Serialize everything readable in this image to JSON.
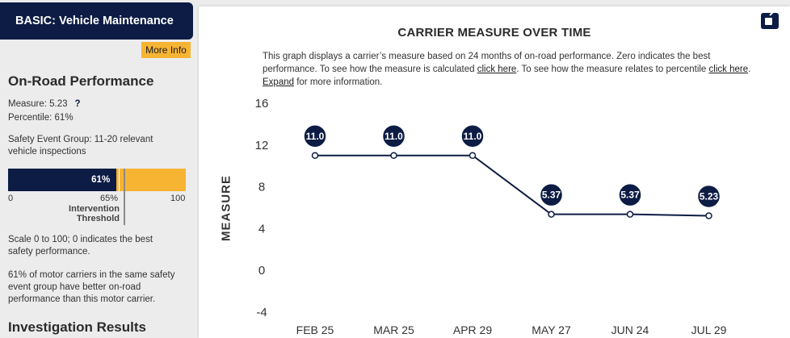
{
  "left_panel": {
    "basic_title": "BASIC: Vehicle Maintenance",
    "more_info_label": "More Info",
    "onroad_title": "On-Road Performance",
    "measure_text": "Measure: 5.23",
    "help_symbol": "?",
    "percentile_text": "Percentile: 61%",
    "safety_group_line1": "Safety Event Group: 11-20 relevant",
    "safety_group_line2": "vehicle inspections",
    "bar": {
      "percentile": 61,
      "fill_label": "61%",
      "min_label": "0",
      "threshold_label": "65%",
      "max_label": "100",
      "threshold_value": 65,
      "threshold_caption_line1": "Intervention",
      "threshold_caption_line2": "Threshold"
    },
    "scale_line1": "Scale 0 to 100; 0 indicates the best",
    "scale_line2": "safety performance.",
    "pct_note_line1": "61% of motor carriers in the same safety",
    "pct_note_line2": "event group have better on-road",
    "pct_note_line3": "performance than this motor carrier.",
    "investigation_title": "Investigation Results"
  },
  "chart_panel": {
    "title": "CARRIER MEASURE OVER TIME",
    "desc_part1": "This graph displays a carrier’s measure based on 24 months of on-road performance. Zero indicates the best performance. To see how the measure is calculated ",
    "link1": "click here",
    "desc_part2": ". To see how the measure relates to percentile ",
    "link2": "click here",
    "desc_part3": ". ",
    "link3": "Expand",
    "desc_part4": " for more information."
  },
  "chart_data": {
    "type": "line",
    "title": "CARRIER MEASURE OVER TIME",
    "xlabel": "",
    "ylabel": "MEASURE",
    "categories": [
      "FEB 25",
      "MAR 25",
      "APR 29",
      "MAY 27",
      "JUN 24",
      "JUL 29"
    ],
    "values": [
      11.0,
      11.0,
      11.0,
      5.37,
      5.37,
      5.23
    ],
    "labels": [
      "11.0",
      "11.0",
      "11.0",
      "5.37",
      "5.37",
      "5.23"
    ],
    "ylim": [
      -4,
      16
    ],
    "yticks": [
      16,
      12,
      8,
      4,
      0,
      -4
    ],
    "colors": {
      "line": "#0d1c44",
      "badge": "#0d1c44"
    }
  }
}
